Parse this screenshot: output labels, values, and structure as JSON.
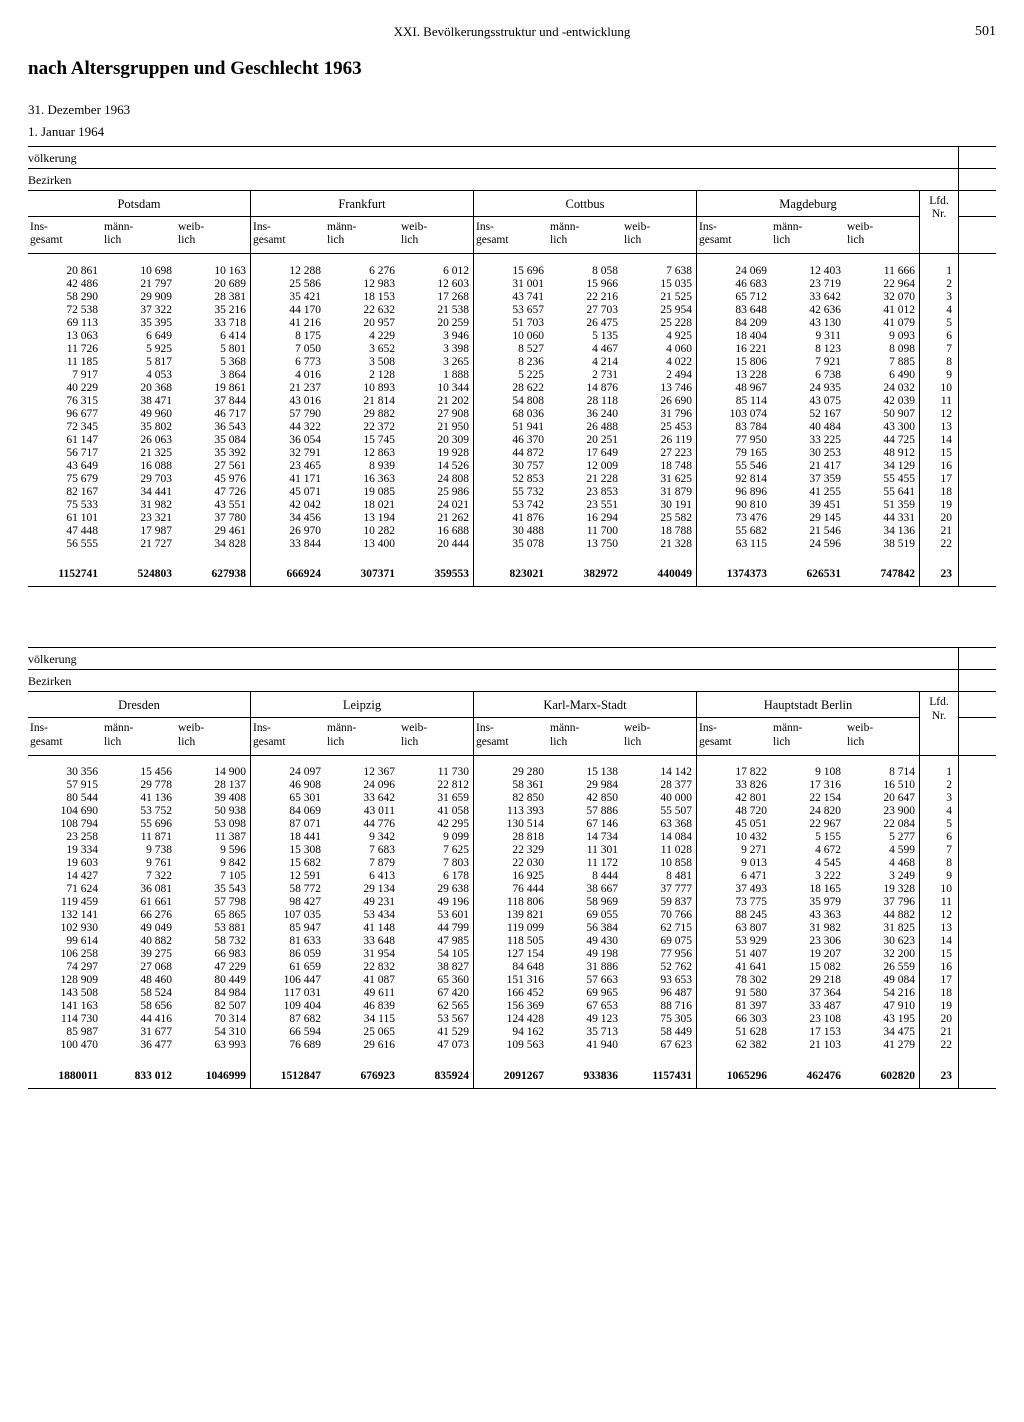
{
  "header": {
    "chapter": "XXI. Bevölkerungsstruktur und -entwicklung",
    "page": "501"
  },
  "title": "nach Altersgruppen und Geschlecht 1963",
  "dates": {
    "d1": "31. Dezember 1963",
    "d2": "1. Januar 1964"
  },
  "labels": {
    "volk": "völkerung",
    "bezirk": "Bezirken",
    "ins": "Ins-\ngesamt",
    "mann": "männ-\nlich",
    "weib": "weib-\nlich",
    "lfd": "Lfd.\nNr."
  },
  "districts1": [
    "Potsdam",
    "Frankfurt",
    "Cottbus",
    "Magdeburg"
  ],
  "districts2": [
    "Dresden",
    "Leipzig",
    "Karl-Marx-Stadt",
    "Hauptstadt Berlin"
  ],
  "table1": {
    "rows": [
      [
        "20 861",
        "10 698",
        "10 163",
        "12 288",
        "6 276",
        "6 012",
        "15 696",
        "8 058",
        "7 638",
        "24 069",
        "12 403",
        "11 666",
        "1"
      ],
      [
        "42 486",
        "21 797",
        "20 689",
        "25 586",
        "12 983",
        "12 603",
        "31 001",
        "15 966",
        "15 035",
        "46 683",
        "23 719",
        "22 964",
        "2"
      ],
      [
        "58 290",
        "29 909",
        "28 381",
        "35 421",
        "18 153",
        "17 268",
        "43 741",
        "22 216",
        "21 525",
        "65 712",
        "33 642",
        "32 070",
        "3"
      ],
      [
        "72 538",
        "37 322",
        "35 216",
        "44 170",
        "22 632",
        "21 538",
        "53 657",
        "27 703",
        "25 954",
        "83 648",
        "42 636",
        "41 012",
        "4"
      ],
      [
        "69 113",
        "35 395",
        "33 718",
        "41 216",
        "20 957",
        "20 259",
        "51 703",
        "26 475",
        "25 228",
        "84 209",
        "43 130",
        "41 079",
        "5"
      ],
      [
        "13 063",
        "6 649",
        "6 414",
        "8 175",
        "4 229",
        "3 946",
        "10 060",
        "5 135",
        "4 925",
        "18 404",
        "9 311",
        "9 093",
        "6"
      ],
      [
        "11 726",
        "5 925",
        "5 801",
        "7 050",
        "3 652",
        "3 398",
        "8 527",
        "4 467",
        "4 060",
        "16 221",
        "8 123",
        "8 098",
        "7"
      ],
      [
        "11 185",
        "5 817",
        "5 368",
        "6 773",
        "3 508",
        "3 265",
        "8 236",
        "4 214",
        "4 022",
        "15 806",
        "7 921",
        "7 885",
        "8"
      ],
      [
        "7 917",
        "4 053",
        "3 864",
        "4 016",
        "2 128",
        "1 888",
        "5 225",
        "2 731",
        "2 494",
        "13 228",
        "6 738",
        "6 490",
        "9"
      ],
      [
        "40 229",
        "20 368",
        "19 861",
        "21 237",
        "10 893",
        "10 344",
        "28 622",
        "14 876",
        "13 746",
        "48 967",
        "24 935",
        "24 032",
        "10"
      ],
      [
        "76 315",
        "38 471",
        "37 844",
        "43 016",
        "21 814",
        "21 202",
        "54 808",
        "28 118",
        "26 690",
        "85 114",
        "43 075",
        "42 039",
        "11"
      ],
      [
        "96 677",
        "49 960",
        "46 717",
        "57 790",
        "29 882",
        "27 908",
        "68 036",
        "36 240",
        "31 796",
        "103 074",
        "52 167",
        "50 907",
        "12"
      ],
      [
        "72 345",
        "35 802",
        "36 543",
        "44 322",
        "22 372",
        "21 950",
        "51 941",
        "26 488",
        "25 453",
        "83 784",
        "40 484",
        "43 300",
        "13"
      ],
      [
        "61 147",
        "26 063",
        "35 084",
        "36 054",
        "15 745",
        "20 309",
        "46 370",
        "20 251",
        "26 119",
        "77 950",
        "33 225",
        "44 725",
        "14"
      ],
      [
        "56 717",
        "21 325",
        "35 392",
        "32 791",
        "12 863",
        "19 928",
        "44 872",
        "17 649",
        "27 223",
        "79 165",
        "30 253",
        "48 912",
        "15"
      ],
      [
        "43 649",
        "16 088",
        "27 561",
        "23 465",
        "8 939",
        "14 526",
        "30 757",
        "12 009",
        "18 748",
        "55 546",
        "21 417",
        "34 129",
        "16"
      ],
      [
        "75 679",
        "29 703",
        "45 976",
        "41 171",
        "16 363",
        "24 808",
        "52 853",
        "21 228",
        "31 625",
        "92 814",
        "37 359",
        "55 455",
        "17"
      ],
      [
        "82 167",
        "34 441",
        "47 726",
        "45 071",
        "19 085",
        "25 986",
        "55 732",
        "23 853",
        "31 879",
        "96 896",
        "41 255",
        "55 641",
        "18"
      ],
      [
        "75 533",
        "31 982",
        "43 551",
        "42 042",
        "18 021",
        "24 021",
        "53 742",
        "23 551",
        "30 191",
        "90 810",
        "39 451",
        "51 359",
        "19"
      ],
      [
        "61 101",
        "23 321",
        "37 780",
        "34 456",
        "13 194",
        "21 262",
        "41 876",
        "16 294",
        "25 582",
        "73 476",
        "29 145",
        "44 331",
        "20"
      ],
      [
        "47 448",
        "17 987",
        "29 461",
        "26 970",
        "10 282",
        "16 688",
        "30 488",
        "11 700",
        "18 788",
        "55 682",
        "21 546",
        "34 136",
        "21"
      ],
      [
        "56 555",
        "21 727",
        "34 828",
        "33 844",
        "13 400",
        "20 444",
        "35 078",
        "13 750",
        "21 328",
        "63 115",
        "24 596",
        "38 519",
        "22"
      ]
    ],
    "totals": [
      "1152741",
      "524803",
      "627938",
      "666924",
      "307371",
      "359553",
      "823021",
      "382972",
      "440049",
      "1374373",
      "626531",
      "747842",
      "23"
    ]
  },
  "table2": {
    "rows": [
      [
        "30 356",
        "15 456",
        "14 900",
        "24 097",
        "12 367",
        "11 730",
        "29 280",
        "15 138",
        "14 142",
        "17 822",
        "9 108",
        "8 714",
        "1"
      ],
      [
        "57 915",
        "29 778",
        "28 137",
        "46 908",
        "24 096",
        "22 812",
        "58 361",
        "29 984",
        "28 377",
        "33 826",
        "17 316",
        "16 510",
        "2"
      ],
      [
        "80 544",
        "41 136",
        "39 408",
        "65 301",
        "33 642",
        "31 659",
        "82 850",
        "42 850",
        "40 000",
        "42 801",
        "22 154",
        "20 647",
        "3"
      ],
      [
        "104 690",
        "53 752",
        "50 938",
        "84 069",
        "43 011",
        "41 058",
        "113 393",
        "57 886",
        "55 507",
        "48 720",
        "24 820",
        "23 900",
        "4"
      ],
      [
        "108 794",
        "55 696",
        "53 098",
        "87 071",
        "44 776",
        "42 295",
        "130 514",
        "67 146",
        "63 368",
        "45 051",
        "22 967",
        "22 084",
        "5"
      ],
      [
        "23 258",
        "11 871",
        "11 387",
        "18 441",
        "9 342",
        "9 099",
        "28 818",
        "14 734",
        "14 084",
        "10 432",
        "5 155",
        "5 277",
        "6"
      ],
      [
        "19 334",
        "9 738",
        "9 596",
        "15 308",
        "7 683",
        "7 625",
        "22 329",
        "11 301",
        "11 028",
        "9 271",
        "4 672",
        "4 599",
        "7"
      ],
      [
        "19 603",
        "9 761",
        "9 842",
        "15 682",
        "7 879",
        "7 803",
        "22 030",
        "11 172",
        "10 858",
        "9 013",
        "4 545",
        "4 468",
        "8"
      ],
      [
        "14 427",
        "7 322",
        "7 105",
        "12 591",
        "6 413",
        "6 178",
        "16 925",
        "8 444",
        "8 481",
        "6 471",
        "3 222",
        "3 249",
        "9"
      ],
      [
        "71 624",
        "36 081",
        "35 543",
        "58 772",
        "29 134",
        "29 638",
        "76 444",
        "38 667",
        "37 777",
        "37 493",
        "18 165",
        "19 328",
        "10"
      ],
      [
        "119 459",
        "61 661",
        "57 798",
        "98 427",
        "49 231",
        "49 196",
        "118 806",
        "58 969",
        "59 837",
        "73 775",
        "35 979",
        "37 796",
        "11"
      ],
      [
        "132 141",
        "66 276",
        "65 865",
        "107 035",
        "53 434",
        "53 601",
        "139 821",
        "69 055",
        "70 766",
        "88 245",
        "43 363",
        "44 882",
        "12"
      ],
      [
        "102 930",
        "49 049",
        "53 881",
        "85 947",
        "41 148",
        "44 799",
        "119 099",
        "56 384",
        "62 715",
        "63 807",
        "31 982",
        "31 825",
        "13"
      ],
      [
        "99 614",
        "40 882",
        "58 732",
        "81 633",
        "33 648",
        "47 985",
        "118 505",
        "49 430",
        "69 075",
        "53 929",
        "23 306",
        "30 623",
        "14"
      ],
      [
        "106 258",
        "39 275",
        "66 983",
        "86 059",
        "31 954",
        "54 105",
        "127 154",
        "49 198",
        "77 956",
        "51 407",
        "19 207",
        "32 200",
        "15"
      ],
      [
        "74 297",
        "27 068",
        "47 229",
        "61 659",
        "22 832",
        "38 827",
        "84 648",
        "31 886",
        "52 762",
        "41 641",
        "15 082",
        "26 559",
        "16"
      ],
      [
        "128 909",
        "48 460",
        "80 449",
        "106 447",
        "41 087",
        "65 360",
        "151 316",
        "57 663",
        "93 653",
        "78 302",
        "29 218",
        "49 084",
        "17"
      ],
      [
        "143 508",
        "58 524",
        "84 984",
        "117 031",
        "49 611",
        "67 420",
        "166 452",
        "69 965",
        "96 487",
        "91 580",
        "37 364",
        "54 216",
        "18"
      ],
      [
        "141 163",
        "58 656",
        "82 507",
        "109 404",
        "46 839",
        "62 565",
        "156 369",
        "67 653",
        "88 716",
        "81 397",
        "33 487",
        "47 910",
        "19"
      ],
      [
        "114 730",
        "44 416",
        "70 314",
        "87 682",
        "34 115",
        "53 567",
        "124 428",
        "49 123",
        "75 305",
        "66 303",
        "23 108",
        "43 195",
        "20"
      ],
      [
        "85 987",
        "31 677",
        "54 310",
        "66 594",
        "25 065",
        "41 529",
        "94 162",
        "35 713",
        "58 449",
        "51 628",
        "17 153",
        "34 475",
        "21"
      ],
      [
        "100 470",
        "36 477",
        "63 993",
        "76 689",
        "29 616",
        "47 073",
        "109 563",
        "41 940",
        "67 623",
        "62 382",
        "21 103",
        "41 279",
        "22"
      ]
    ],
    "totals": [
      "1880011",
      "833 012",
      "1046999",
      "1512847",
      "676923",
      "835924",
      "2091267",
      "933836",
      "1157431",
      "1065296",
      "462476",
      "602820",
      "23"
    ]
  }
}
